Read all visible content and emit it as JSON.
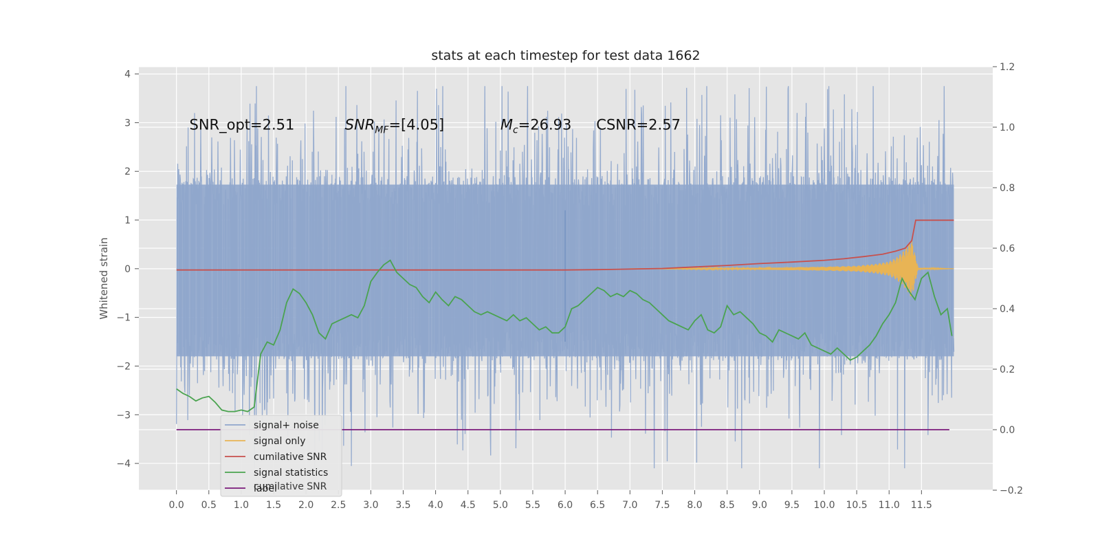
{
  "chart_data": {
    "type": "line",
    "title": "stats at each timestep for test data 1662",
    "ylabel": "Whitened strain",
    "xlabel": "",
    "xlim": [
      -0.58,
      12.6
    ],
    "ylim": [
      -4.55,
      4.15
    ],
    "y2lim": [
      -0.2,
      1.2
    ],
    "grid": true,
    "legend_placement": "lower-left",
    "x_ticks": [
      "0.0",
      "0.5",
      "1.0",
      "1.5",
      "2.0",
      "2.5",
      "3.0",
      "3.5",
      "4.0",
      "4.5",
      "5.0",
      "5.5",
      "6.0",
      "6.5",
      "7.0",
      "7.5",
      "8.0",
      "8.5",
      "9.0",
      "9.5",
      "10.0",
      "10.5",
      "11.0",
      "11.5"
    ],
    "y_ticks": [
      "4",
      "3",
      "2",
      "1",
      "0",
      "−1",
      "−2",
      "−3",
      "−4"
    ],
    "y2_ticks": [
      "1.2",
      "1.0",
      "0.8",
      "0.6",
      "0.4",
      "0.2",
      "0.0",
      "−0.2"
    ],
    "annotations": [
      {
        "text": "SNR_opt=2.51",
        "x": 0.2,
        "y": 2.97
      },
      {
        "text_main": "SNR",
        "text_sub": "MF",
        "text_rest": "=[4.05]",
        "x": 2.6,
        "y": 2.97
      },
      {
        "text_main": "M",
        "text_sub": "c",
        "text_rest": "=26.93",
        "x": 5.0,
        "y": 2.97
      },
      {
        "text": "CSNR=2.57",
        "x": 6.48,
        "y": 2.97
      }
    ],
    "legend": {
      "items": [
        "signal+ noise",
        "signal only",
        "cumilative SNR",
        "signal statistics",
        "label"
      ],
      "hidden_text": "cumilative SNR"
    },
    "series": [
      {
        "name": "signal+ noise",
        "color": "#8fa6cc",
        "axis": "left",
        "kind": "noise",
        "x_start": 0.0,
        "x_end": 12.0,
        "envelope_upper": 2.4,
        "envelope_lower": -2.5,
        "max": 3.75,
        "min": -4.1
      },
      {
        "name": "signal only",
        "color": "#e8b455",
        "axis": "left",
        "kind": "chirp",
        "x": [
          7.0,
          8.0,
          9.0,
          10.0,
          10.5,
          10.8,
          11.0,
          11.1,
          11.2,
          11.3,
          11.35,
          11.4,
          11.45,
          12.0
        ],
        "amplitude": [
          0.0,
          0.01,
          0.02,
          0.04,
          0.06,
          0.1,
          0.15,
          0.22,
          0.33,
          0.5,
          0.62,
          0.3,
          0.02,
          0.0
        ]
      },
      {
        "name": "cumilative SNR",
        "color": "#c8504c",
        "axis": "right",
        "x": [
          0.0,
          1.0,
          2.0,
          3.0,
          4.0,
          5.0,
          6.0,
          6.5,
          7.0,
          7.5,
          8.0,
          8.5,
          9.0,
          9.5,
          10.0,
          10.3,
          10.6,
          10.9,
          11.1,
          11.25,
          11.35,
          11.41,
          12.0
        ],
        "y": [
          0.528,
          0.528,
          0.528,
          0.528,
          0.528,
          0.528,
          0.528,
          0.529,
          0.531,
          0.533,
          0.538,
          0.543,
          0.549,
          0.554,
          0.56,
          0.565,
          0.572,
          0.58,
          0.59,
          0.6,
          0.625,
          0.6925,
          0.6925
        ]
      },
      {
        "name": "signal statistics",
        "color": "#4aa34f",
        "axis": "right",
        "x": [
          0.0,
          0.1,
          0.2,
          0.3,
          0.4,
          0.5,
          0.6,
          0.7,
          0.8,
          0.9,
          1.0,
          1.1,
          1.2,
          1.3,
          1.4,
          1.5,
          1.6,
          1.7,
          1.8,
          1.9,
          2.0,
          2.1,
          2.2,
          2.3,
          2.4,
          2.5,
          2.6,
          2.7,
          2.8,
          2.9,
          3.0,
          3.1,
          3.2,
          3.3,
          3.4,
          3.5,
          3.6,
          3.7,
          3.8,
          3.9,
          4.0,
          4.1,
          4.2,
          4.3,
          4.4,
          4.5,
          4.6,
          4.7,
          4.8,
          4.9,
          5.0,
          5.1,
          5.2,
          5.3,
          5.4,
          5.5,
          5.6,
          5.7,
          5.8,
          5.9,
          6.0,
          6.1,
          6.2,
          6.3,
          6.4,
          6.5,
          6.6,
          6.7,
          6.8,
          6.9,
          7.0,
          7.1,
          7.2,
          7.3,
          7.4,
          7.5,
          7.6,
          7.7,
          7.8,
          7.9,
          8.0,
          8.1,
          8.2,
          8.3,
          8.4,
          8.5,
          8.6,
          8.7,
          8.8,
          8.9,
          9.0,
          9.1,
          9.2,
          9.3,
          9.4,
          9.5,
          9.6,
          9.7,
          9.8,
          9.9,
          10.0,
          10.1,
          10.2,
          10.3,
          10.4,
          10.5,
          10.6,
          10.7,
          10.8,
          10.9,
          11.0,
          11.1,
          11.2,
          11.3,
          11.4,
          11.5,
          11.6,
          11.7,
          11.8,
          11.9,
          11.97
        ],
        "y": [
          0.135,
          0.12,
          0.11,
          0.095,
          0.105,
          0.11,
          0.09,
          0.065,
          0.06,
          0.06,
          0.065,
          0.06,
          0.075,
          0.25,
          0.29,
          0.28,
          0.33,
          0.42,
          0.465,
          0.45,
          0.42,
          0.38,
          0.32,
          0.3,
          0.35,
          0.36,
          0.37,
          0.38,
          0.37,
          0.41,
          0.49,
          0.52,
          0.545,
          0.56,
          0.52,
          0.5,
          0.48,
          0.47,
          0.44,
          0.42,
          0.455,
          0.43,
          0.41,
          0.44,
          0.43,
          0.41,
          0.39,
          0.38,
          0.39,
          0.38,
          0.37,
          0.36,
          0.38,
          0.36,
          0.37,
          0.35,
          0.33,
          0.34,
          0.32,
          0.32,
          0.34,
          0.4,
          0.41,
          0.43,
          0.45,
          0.47,
          0.46,
          0.44,
          0.45,
          0.44,
          0.46,
          0.45,
          0.43,
          0.42,
          0.4,
          0.38,
          0.36,
          0.35,
          0.34,
          0.33,
          0.36,
          0.38,
          0.33,
          0.32,
          0.34,
          0.41,
          0.38,
          0.39,
          0.37,
          0.35,
          0.32,
          0.31,
          0.29,
          0.33,
          0.32,
          0.31,
          0.3,
          0.32,
          0.28,
          0.27,
          0.26,
          0.25,
          0.27,
          0.25,
          0.23,
          0.24,
          0.26,
          0.28,
          0.31,
          0.35,
          0.38,
          0.42,
          0.5,
          0.46,
          0.43,
          0.5,
          0.52,
          0.44,
          0.38,
          0.4,
          0.31
        ]
      },
      {
        "name": "label",
        "color": "#7a1a7a",
        "axis": "right",
        "x": [
          0.0,
          11.93
        ],
        "y": [
          0.0,
          0.0
        ]
      }
    ]
  }
}
